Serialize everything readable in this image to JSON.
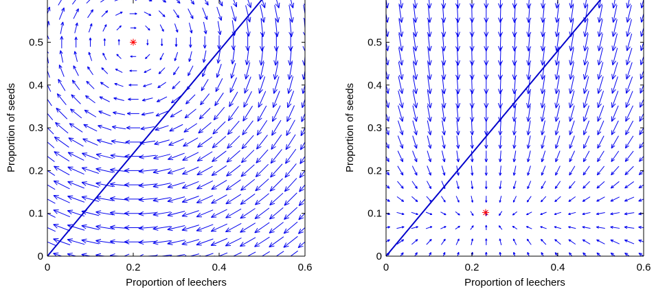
{
  "chart_data": [
    {
      "type": "quiver",
      "xlabel": "Proportion of leechers",
      "ylabel": "Proportion of seeds",
      "xlim": [
        0,
        0.6
      ],
      "ylim": [
        0,
        0.6
      ],
      "xticks": [
        0,
        0.2,
        0.4,
        0.6
      ],
      "xtick_labels": [
        "0",
        "0.2",
        "0.4",
        "0.6"
      ],
      "yticks": [
        0,
        0.1,
        0.2,
        0.3,
        0.4,
        0.5
      ],
      "ytick_labels": [
        "0",
        "0.1",
        "0.2",
        "0.3",
        "0.4",
        "0.5"
      ],
      "grid": false,
      "arrow_color": "#0000ee",
      "line_color": "#0000cc",
      "marker_color": "#ff0000",
      "equilibrium_marker": {
        "x": 0.2,
        "y": 0.5,
        "symbol": "*"
      },
      "reference_line": {
        "x": [
          0,
          0.6
        ],
        "y": [
          0,
          0.72
        ]
      },
      "field": {
        "pattern": "rotation",
        "center": [
          0.2,
          0.5
        ]
      }
    },
    {
      "type": "quiver",
      "xlabel": "Proportion of leechers",
      "ylabel": "Proportion of seeds",
      "xlim": [
        0,
        0.6
      ],
      "ylim": [
        0,
        0.6
      ],
      "xticks": [
        0,
        0.2,
        0.4,
        0.6
      ],
      "xtick_labels": [
        "0",
        "0.2",
        "0.4",
        "0.6"
      ],
      "yticks": [
        0,
        0.1,
        0.2,
        0.3,
        0.4,
        0.5
      ],
      "ytick_labels": [
        "0",
        "0.1",
        "0.2",
        "0.3",
        "0.4",
        "0.5"
      ],
      "grid": false,
      "arrow_color": "#0000ee",
      "line_color": "#0000cc",
      "marker_color": "#ff0000",
      "equilibrium_marker": {
        "x": 0.232,
        "y": 0.102,
        "symbol": "*"
      },
      "reference_line": {
        "x": [
          0,
          0.6
        ],
        "y": [
          0,
          0.72
        ]
      },
      "field": {
        "pattern": "sink",
        "center": [
          0.232,
          0.102
        ]
      }
    }
  ]
}
